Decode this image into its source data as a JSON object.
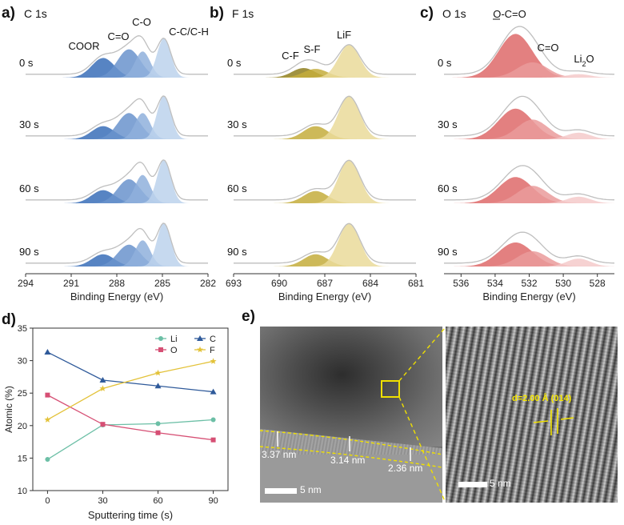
{
  "xps": {
    "axis_label": "Binding Energy (eV)",
    "times": [
      "0 s",
      "30 s",
      "60 s",
      "90 s"
    ],
    "colors": {
      "envelope": "#bfbfbf",
      "tick": "#333333"
    },
    "panels": [
      {
        "letter": "a)",
        "title": "C 1s",
        "xlim": [
          294,
          282
        ],
        "ticks": [
          "294",
          "291",
          "288",
          "285",
          "282"
        ],
        "tick_values": [
          294,
          291,
          288,
          285,
          282
        ],
        "components": [
          {
            "name": "COOR",
            "label": "COOR",
            "center": 288.9,
            "width": 0.75,
            "color": "#3a6fb8"
          },
          {
            "name": "C=O",
            "label": "C=O",
            "center": 287.2,
            "width": 0.75,
            "color": "#6a93cd"
          },
          {
            "name": "C-O",
            "label": "C-O",
            "center": 286.3,
            "width": 0.5,
            "color": "#8fb0dc"
          },
          {
            "name": "C-C/C-H",
            "label": "C-C/C-H",
            "center": 284.9,
            "width": 0.45,
            "color": "#bcd2ec"
          }
        ],
        "amplitudes": [
          [
            0.45,
            0.65,
            0.6,
            0.9
          ],
          [
            0.3,
            0.6,
            0.6,
            1.0
          ],
          [
            0.3,
            0.55,
            0.65,
            1.0
          ],
          [
            0.28,
            0.5,
            0.6,
            1.0
          ]
        ]
      },
      {
        "letter": "b)",
        "title": "F 1s",
        "xlim": [
          693,
          681
        ],
        "ticks": [
          "693",
          "690",
          "687",
          "684",
          "681"
        ],
        "tick_values": [
          693,
          690,
          687,
          684,
          681
        ],
        "components": [
          {
            "name": "C-F",
            "label": "C-F",
            "center": 688.4,
            "width": 0.75,
            "color": "#8f7f1f"
          },
          {
            "name": "S-F",
            "label": "S-F",
            "center": 687.6,
            "width": 0.8,
            "color": "#c4ad3c"
          },
          {
            "name": "LiF",
            "label": "LiF",
            "center": 685.4,
            "width": 0.7,
            "color": "#eadb9a"
          }
        ],
        "amplitudes": [
          [
            0.22,
            0.2,
            0.75
          ],
          [
            0.0,
            0.3,
            1.0
          ],
          [
            0.0,
            0.28,
            1.0
          ],
          [
            0.0,
            0.28,
            1.0
          ]
        ]
      },
      {
        "letter": "c)",
        "title": "O 1s",
        "xlim": [
          537,
          527
        ],
        "ticks": [
          "536",
          "534",
          "532",
          "530",
          "528"
        ],
        "tick_values": [
          536,
          534,
          532,
          530,
          528
        ],
        "components": [
          {
            "name": "O-C=O",
            "label": "O-C=O",
            "center": 532.8,
            "width": 1.0,
            "color": "#de6a6a"
          },
          {
            "name": "C=O",
            "label": "C=O",
            "center": 531.8,
            "width": 0.9,
            "color": "#ea9b9b"
          },
          {
            "name": "Li2O",
            "label": "Li",
            "label_sub": "2",
            "label_tail": "O",
            "center": 529.1,
            "width": 0.7,
            "color": "#f4caca"
          }
        ],
        "amplitudes": [
          [
            1.0,
            0.35,
            0.08
          ],
          [
            0.7,
            0.45,
            0.15
          ],
          [
            0.6,
            0.4,
            0.15
          ],
          [
            0.55,
            0.35,
            0.18
          ]
        ]
      }
    ]
  },
  "chart_data": {
    "type": "line",
    "letter": "d)",
    "xlabel": "Sputtering time (s)",
    "ylabel": "Atomic (%)",
    "x": [
      0,
      30,
      60,
      90
    ],
    "xticks": [
      "0",
      "30",
      "60",
      "90"
    ],
    "ylim": [
      10,
      35
    ],
    "yticks": [
      "10",
      "15",
      "20",
      "25",
      "30",
      "35"
    ],
    "legend_position": "top-right",
    "series": [
      {
        "name": "Li",
        "marker": "circle",
        "color": "#6cbfa6",
        "values": [
          14.8,
          20.1,
          20.3,
          20.9
        ]
      },
      {
        "name": "C",
        "marker": "triangle",
        "color": "#2f5a9a",
        "values": [
          31.3,
          27.0,
          26.1,
          25.2
        ]
      },
      {
        "name": "O",
        "marker": "square",
        "color": "#d64f74",
        "values": [
          24.7,
          20.2,
          18.9,
          17.8
        ]
      },
      {
        "name": "F",
        "marker": "star",
        "color": "#e3c239",
        "values": [
          20.9,
          25.7,
          28.1,
          29.9
        ]
      }
    ]
  },
  "tem": {
    "letter": "e)",
    "thicknesses": [
      "3.37 nm",
      "3.14 nm",
      "2.36 nm"
    ],
    "scalebar_left": "5 nm",
    "scalebar_right": "5 nm",
    "lattice_label": "d=2.00 Å (014)",
    "colors": {
      "highlight": "#f0e000"
    }
  }
}
